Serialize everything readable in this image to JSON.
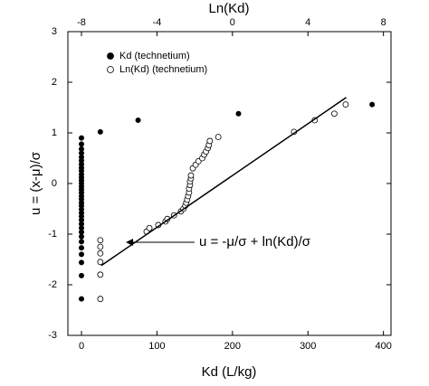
{
  "chart_data": {
    "type": "scatter",
    "xlabel": "Kd (L/kg)",
    "x2label": "Ln(Kd)",
    "ylabel": "u = (x-μ)/σ",
    "annotation": "u = -μ/σ + ln(Kd)/σ",
    "xlim": [
      -18,
      410
    ],
    "xticks": [
      0,
      100,
      200,
      300,
      400
    ],
    "x2lim": [
      -8.72,
      8.4
    ],
    "x2ticks": [
      -8,
      -4,
      0,
      4,
      8
    ],
    "ylim": [
      -3,
      3
    ],
    "yticks": [
      -3,
      -2,
      -1,
      0,
      1,
      2,
      3
    ],
    "legend": "upper left",
    "series": [
      {
        "name": "Kd (technetium)",
        "color": "#000000",
        "marker": "filled",
        "x": [
          0,
          0,
          0,
          0,
          0,
          0,
          0,
          0,
          0,
          0,
          0,
          0,
          0,
          0,
          0,
          0,
          0,
          0,
          0,
          0,
          0,
          0,
          0,
          0,
          0,
          0,
          0,
          0,
          0,
          0,
          0,
          0,
          0,
          0,
          25,
          75,
          208,
          385
        ],
        "values": [
          -2.28,
          -1.82,
          -1.56,
          -1.4,
          -1.27,
          -1.15,
          -1.05,
          -0.96,
          -0.88,
          -0.8,
          -0.72,
          -0.65,
          -0.58,
          -0.51,
          -0.44,
          -0.38,
          -0.31,
          -0.25,
          -0.18,
          -0.12,
          -0.06,
          0,
          0.06,
          0.12,
          0.18,
          0.25,
          0.31,
          0.38,
          0.45,
          0.52,
          0.6,
          0.68,
          0.78,
          0.9,
          1.02,
          1.25,
          1.38,
          1.56
        ]
      },
      {
        "name": "Ln(Kd) (technetium)",
        "color": "#000000",
        "marker": "open",
        "axis": "x2",
        "x": [
          -7,
          -7,
          -7,
          -7,
          -7,
          -7,
          -4.55,
          -4.4,
          -3.93,
          -3.55,
          -3.45,
          -3.1,
          -2.73,
          -2.6,
          -2.5,
          -2.45,
          -2.4,
          -2.35,
          -2.3,
          -2.3,
          -2.25,
          -2.25,
          -2.2,
          -2.2,
          -2.1,
          -1.95,
          -1.8,
          -1.6,
          -1.5,
          -1.4,
          -1.3,
          -1.25,
          -1.2,
          -0.75,
          3.26,
          4.36,
          5.4,
          6.0
        ],
        "values": [
          -2.28,
          -1.8,
          -1.55,
          -1.38,
          -1.25,
          -1.12,
          -0.95,
          -0.88,
          -0.82,
          -0.75,
          -0.7,
          -0.63,
          -0.55,
          -0.5,
          -0.44,
          -0.38,
          -0.32,
          -0.25,
          -0.18,
          -0.1,
          -0.03,
          0.04,
          0.1,
          0.16,
          0.3,
          0.37,
          0.44,
          0.5,
          0.57,
          0.63,
          0.7,
          0.76,
          0.84,
          0.92,
          1.02,
          1.25,
          1.38,
          1.56
        ]
      },
      {
        "color": "#000000",
        "marker": "line",
        "axis": "x2",
        "x": [
          -6.95,
          6.03
        ],
        "values": [
          -1.62,
          1.7
        ]
      }
    ]
  }
}
